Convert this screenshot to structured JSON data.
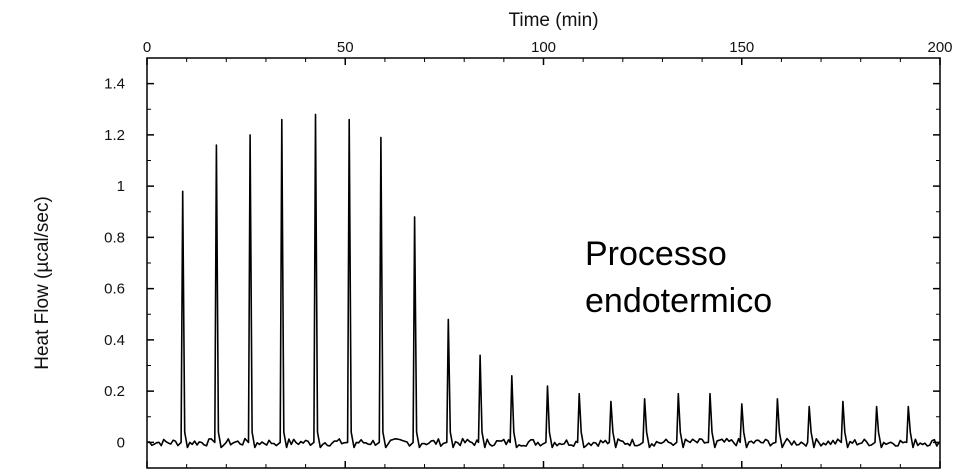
{
  "chart_data": {
    "type": "line",
    "xlabel": "Time (min)",
    "ylabel": "Heat Flow (µcal/sec)",
    "xlim": [
      0,
      200
    ],
    "ylim": [
      -0.1,
      1.5
    ],
    "x_ticks": [
      "0",
      "50",
      "100",
      "150",
      "200"
    ],
    "y_ticks": [
      "0",
      "0.2",
      "0.4",
      "0.6",
      "0.8",
      "1",
      "1.2",
      "1.4"
    ],
    "x_axis_position": "top",
    "grid": false,
    "annotation": [
      "Processo",
      "endotermico"
    ],
    "baseline": 0.0,
    "peaks": [
      {
        "x": 9,
        "y": 0.98
      },
      {
        "x": 17.5,
        "y": 1.16
      },
      {
        "x": 26,
        "y": 1.2
      },
      {
        "x": 34,
        "y": 1.26
      },
      {
        "x": 42.5,
        "y": 1.28
      },
      {
        "x": 51,
        "y": 1.26
      },
      {
        "x": 59,
        "y": 1.19
      },
      {
        "x": 67.5,
        "y": 0.88
      },
      {
        "x": 76,
        "y": 0.48
      },
      {
        "x": 84,
        "y": 0.34
      },
      {
        "x": 92,
        "y": 0.26
      },
      {
        "x": 101,
        "y": 0.22
      },
      {
        "x": 109,
        "y": 0.19
      },
      {
        "x": 117,
        "y": 0.16
      },
      {
        "x": 125.5,
        "y": 0.17
      },
      {
        "x": 134,
        "y": 0.19
      },
      {
        "x": 142,
        "y": 0.19
      },
      {
        "x": 150,
        "y": 0.15
      },
      {
        "x": 159,
        "y": 0.17
      },
      {
        "x": 167,
        "y": 0.14
      },
      {
        "x": 175.5,
        "y": 0.16
      },
      {
        "x": 184,
        "y": 0.14
      },
      {
        "x": 192,
        "y": 0.14
      }
    ],
    "line_color": "#000000"
  }
}
